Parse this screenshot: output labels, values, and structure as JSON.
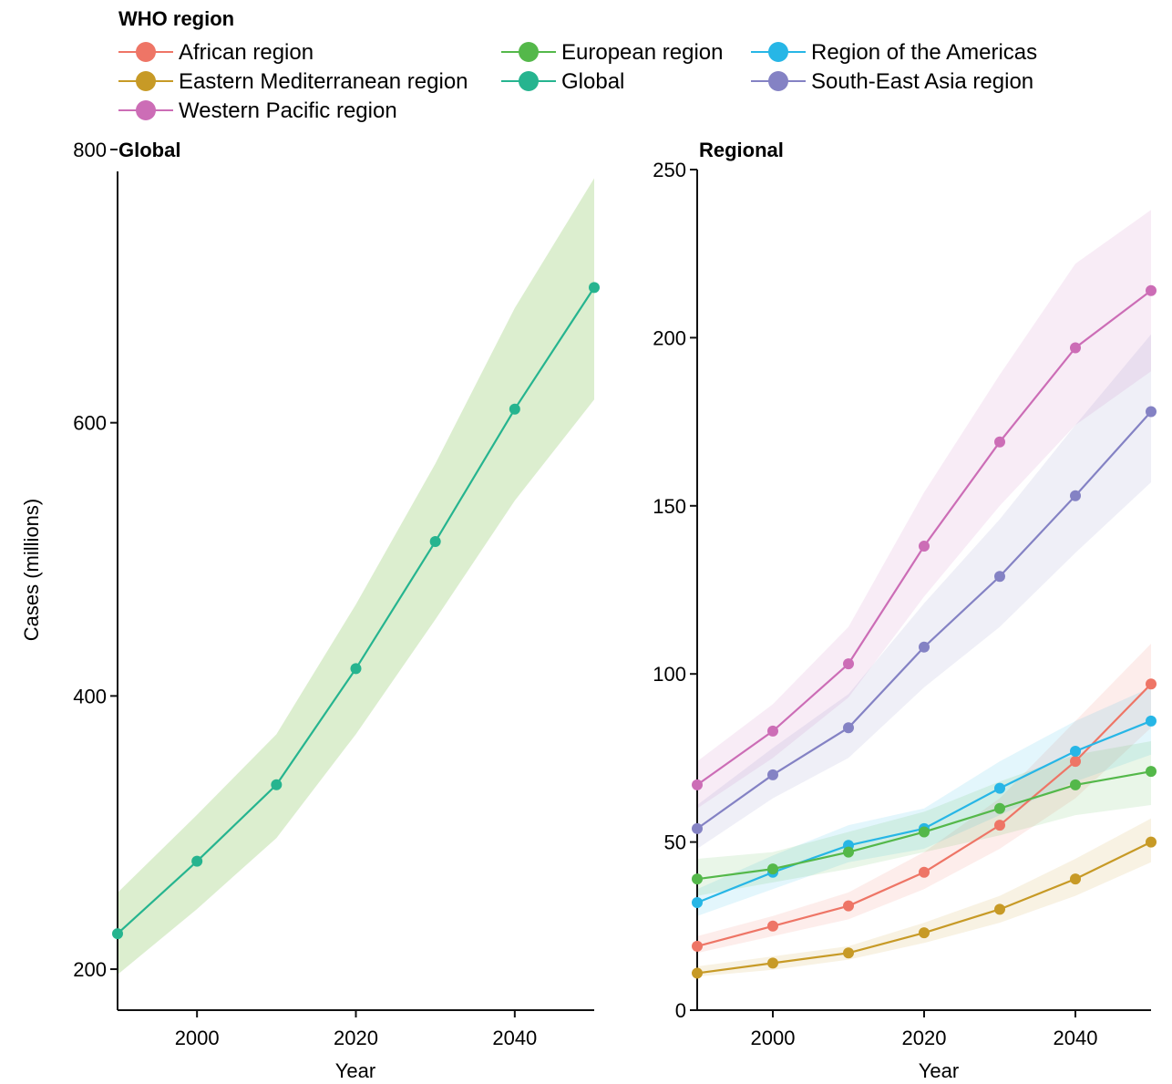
{
  "legend": {
    "title": "WHO region",
    "items": [
      {
        "label": "African region",
        "color": "#ee7566"
      },
      {
        "label": "European region",
        "color": "#54b84a"
      },
      {
        "label": "Region of the Americas",
        "color": "#27b6e6"
      },
      {
        "label": "Eastern Mediterranean region",
        "color": "#c79a26"
      },
      {
        "label": "Global",
        "color": "#26b48f"
      },
      {
        "label": "South-East Asia region",
        "color": "#8482c4"
      },
      {
        "label": "Western Pacific region",
        "color": "#cc6db6"
      }
    ]
  },
  "chart_data": [
    {
      "type": "line",
      "title": "Global",
      "xlabel": "Year",
      "ylabel": "Cases (millions)",
      "xlim": [
        1990,
        2050
      ],
      "ylim": [
        170,
        800
      ],
      "xticks": [
        2000,
        2020,
        2040
      ],
      "yticks": [
        200,
        400,
        600,
        800
      ],
      "band_color": "#d6ebc7",
      "series": [
        {
          "name": "Global",
          "color": "#26b48f",
          "x": [
            1990,
            2000,
            2010,
            2020,
            2030,
            2040,
            2050
          ],
          "values": [
            226,
            279,
            335,
            420,
            513,
            610,
            699
          ],
          "lower": [
            196,
            244,
            296,
            372,
            456,
            543,
            617
          ],
          "upper": [
            256,
            313,
            372,
            467,
            570,
            684,
            779
          ]
        }
      ]
    },
    {
      "type": "line",
      "title": "Regional",
      "xlabel": "Year",
      "ylabel": "",
      "xlim": [
        1990,
        2050
      ],
      "ylim": [
        0,
        250
      ],
      "xticks": [
        2000,
        2020,
        2040
      ],
      "yticks": [
        0,
        50,
        100,
        150,
        200,
        250
      ],
      "series": [
        {
          "name": "Western Pacific region",
          "color": "#cc6db6",
          "x": [
            1990,
            2000,
            2010,
            2020,
            2030,
            2040,
            2050
          ],
          "values": [
            67,
            83,
            103,
            138,
            169,
            197,
            214
          ],
          "lower": [
            60,
            75,
            93,
            123,
            150,
            174,
            190
          ],
          "upper": [
            74,
            91,
            114,
            154,
            189,
            222,
            238
          ]
        },
        {
          "name": "South-East Asia region",
          "color": "#8482c4",
          "x": [
            1990,
            2000,
            2010,
            2020,
            2030,
            2040,
            2050
          ],
          "values": [
            54,
            70,
            84,
            108,
            129,
            153,
            178
          ],
          "lower": [
            48,
            63,
            75,
            96,
            114,
            136,
            157
          ],
          "upper": [
            61,
            78,
            94,
            121,
            146,
            174,
            201
          ]
        },
        {
          "name": "African region",
          "color": "#ee7566",
          "x": [
            1990,
            2000,
            2010,
            2020,
            2030,
            2040,
            2050
          ],
          "values": [
            19,
            25,
            31,
            41,
            55,
            74,
            97
          ],
          "lower": [
            17,
            22,
            27,
            36,
            48,
            63,
            84
          ],
          "upper": [
            22,
            28,
            35,
            47,
            63,
            86,
            109
          ]
        },
        {
          "name": "Region of the Americas",
          "color": "#27b6e6",
          "x": [
            1990,
            2000,
            2010,
            2020,
            2030,
            2040,
            2050
          ],
          "values": [
            32,
            41,
            49,
            54,
            66,
            77,
            86
          ],
          "lower": [
            28,
            36,
            44,
            48,
            58,
            68,
            76
          ],
          "upper": [
            36,
            46,
            55,
            60,
            74,
            86,
            96
          ]
        },
        {
          "name": "European region",
          "color": "#54b84a",
          "x": [
            1990,
            2000,
            2010,
            2020,
            2030,
            2040,
            2050
          ],
          "values": [
            39,
            42,
            47,
            53,
            60,
            67,
            71
          ],
          "lower": [
            34,
            38,
            42,
            47,
            52,
            58,
            61
          ],
          "upper": [
            45,
            47,
            53,
            59,
            68,
            76,
            80
          ]
        },
        {
          "name": "Eastern Mediterranean region",
          "color": "#c79a26",
          "x": [
            1990,
            2000,
            2010,
            2020,
            2030,
            2040,
            2050
          ],
          "values": [
            11,
            14,
            17,
            23,
            30,
            39,
            50
          ],
          "lower": [
            10,
            12,
            15,
            20,
            26,
            34,
            44
          ],
          "upper": [
            13,
            16,
            19,
            26,
            34,
            45,
            57
          ]
        }
      ]
    }
  ]
}
